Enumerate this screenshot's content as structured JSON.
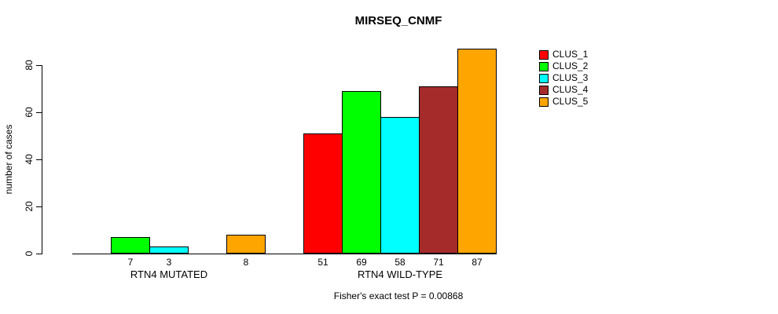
{
  "chart_data": {
    "type": "bar",
    "title": "MIRSEQ_CNMF",
    "ylabel": "number of cases",
    "xlabel": "",
    "yticks": [
      0,
      20,
      40,
      60,
      80
    ],
    "ylim": [
      0,
      87
    ],
    "grid": false,
    "legend_position": "right",
    "categories": [
      "RTN4 MUTATED",
      "RTN4 WILD-TYPE"
    ],
    "series": [
      {
        "name": "CLUS_1",
        "color": "#FF0000",
        "values": [
          0,
          51
        ]
      },
      {
        "name": "CLUS_2",
        "color": "#00FF00",
        "values": [
          7,
          69
        ]
      },
      {
        "name": "CLUS_3",
        "color": "#00FFFF",
        "values": [
          3,
          58
        ]
      },
      {
        "name": "CLUS_4",
        "color": "#A52A2A",
        "values": [
          0,
          71
        ]
      },
      {
        "name": "CLUS_5",
        "color": "#FFA500",
        "values": [
          8,
          87
        ]
      }
    ],
    "bar_value_labels": {
      "RTN4 MUTATED": [
        null,
        7,
        3,
        null,
        8
      ],
      "RTN4 WILD-TYPE": [
        51,
        69,
        58,
        71,
        87
      ]
    },
    "footnote": "Fisher's exact test P = 0.00868"
  }
}
